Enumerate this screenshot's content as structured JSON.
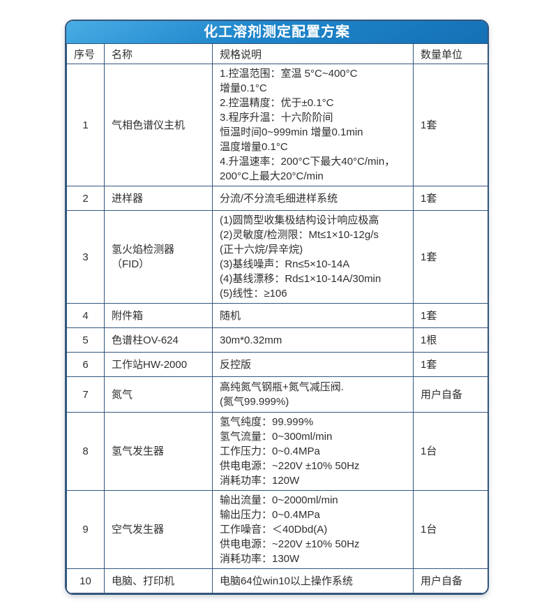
{
  "title": "化工溶剂测定配置方案",
  "columns": [
    "序号",
    "名称",
    "规格说明",
    "数量单位"
  ],
  "rows": [
    {
      "no": "1",
      "name": "气相色谱仪主机",
      "spec": "1.控温范围：室温 5°C~400°C\n增量0.1°C\n2.控温精度：优于±0.1°C\n3.程序升温：十六阶阶间\n恒温时间0~999min 增量0.1min\n温度增量0.1°C\n4.升温速率：200°C下最大40°C/min，\n200°C上最大20°C/min",
      "qty": "1套"
    },
    {
      "no": "2",
      "name": "进样器",
      "spec": "分流/不分流毛细进样系统",
      "qty": "1套"
    },
    {
      "no": "3",
      "name": "氢火焰检测器（FID）",
      "spec": "(1)圆筒型收集极结构设计响应极高\n(2)灵敏度/检测限：Mt≤1×10-12g/s\n(正十六烷/异辛烷)\n(3)基线噪声：Rn≤5×10-14A\n(4)基线漂移：Rd≤1×10-14A/30min\n(5)线性：≥106",
      "qty": "1套"
    },
    {
      "no": "4",
      "name": "附件箱",
      "spec": "随机",
      "qty": "1套"
    },
    {
      "no": "5",
      "name": "色谱柱OV-624",
      "spec": "30m*0.32mm",
      "qty": "1根"
    },
    {
      "no": "6",
      "name": "工作站HW-2000",
      "spec": "反控版",
      "qty": "1套"
    },
    {
      "no": "7",
      "name": "氮气",
      "spec": "高纯氮气钢瓶+氮气减压阀.\n(氮气99.999%)",
      "qty": "用户自备"
    },
    {
      "no": "8",
      "name": "氢气发生器",
      "spec": "氢气纯度：99.999%\n氢气流量：0~300ml/min\n工作压力：0~0.4MPa\n供电电源：~220V ±10% 50Hz\n消耗功率：120W",
      "qty": "1台"
    },
    {
      "no": "9",
      "name": "空气发生器",
      "spec": "输出流量：0~2000ml/min\n输出压力：0~0.4MPa\n工作噪音：＜40Dbd(A)\n供电电源：~220V ±10% 50Hz\n消耗功率：130W",
      "qty": "1台"
    },
    {
      "no": "10",
      "name": "电脑、打印机",
      "spec": "电脑64位win10以上操作系统",
      "qty": "用户自备"
    }
  ],
  "colors": {
    "header_blue_light": "#49ade4",
    "header_blue_dark": "#1470b5",
    "border": "#33557c",
    "text": "#2e2e2e",
    "title_text": "#ffffff"
  }
}
